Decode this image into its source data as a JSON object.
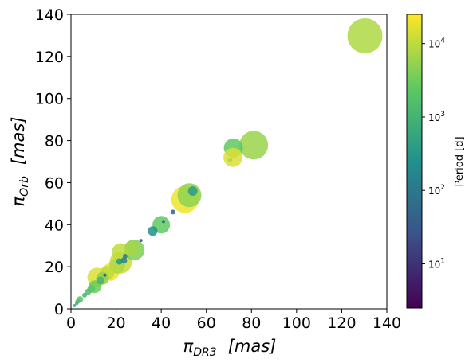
{
  "chart_data": {
    "type": "scatter",
    "title": "",
    "xlabel_main": "π",
    "xlabel_sub": "DR3",
    "xlabel_unit": "[mas]",
    "ylabel_main": "π",
    "ylabel_sub": "Orb",
    "ylabel_unit": "[mas]",
    "xlim": [
      0,
      140
    ],
    "ylim": [
      0,
      140
    ],
    "xticks": [
      "0",
      "20",
      "40",
      "60",
      "80",
      "100",
      "120",
      "140"
    ],
    "yticks": [
      "0",
      "20",
      "40",
      "60",
      "80",
      "100",
      "120",
      "140"
    ],
    "grid": false,
    "colorbar": {
      "label": "Period [d]",
      "scale": "log",
      "range_days": [
        2.5,
        25000
      ],
      "ticks": [
        {
          "base": "10",
          "exp": "1",
          "value": 10
        },
        {
          "base": "10",
          "exp": "2",
          "value": 100
        },
        {
          "base": "10",
          "exp": "3",
          "value": 1000
        },
        {
          "base": "10",
          "exp": "4",
          "value": 10000
        }
      ],
      "colormap": [
        "#440154",
        "#3b528b",
        "#21918c",
        "#5ec962",
        "#fde725"
      ]
    },
    "points": [
      {
        "x": 130.3,
        "y": 129.8,
        "period": 8000,
        "size": 22
      },
      {
        "x": 81.0,
        "y": 77.8,
        "period": 6000,
        "size": 18
      },
      {
        "x": 72.0,
        "y": 76.5,
        "period": 2500,
        "size": 12
      },
      {
        "x": 71.8,
        "y": 72.0,
        "period": 15000,
        "size": 12
      },
      {
        "x": 70.5,
        "y": 70.8,
        "period": 8000,
        "size": 3
      },
      {
        "x": 50.5,
        "y": 52.0,
        "period": 20000,
        "size": 17
      },
      {
        "x": 52.5,
        "y": 54.0,
        "period": 5000,
        "size": 15
      },
      {
        "x": 54.0,
        "y": 56.0,
        "period": 400,
        "size": 6
      },
      {
        "x": 45.2,
        "y": 46.0,
        "period": 40,
        "size": 3
      },
      {
        "x": 40.0,
        "y": 40.0,
        "period": 2500,
        "size": 11
      },
      {
        "x": 41.0,
        "y": 41.5,
        "period": 30,
        "size": 2
      },
      {
        "x": 36.2,
        "y": 37.0,
        "period": 250,
        "size": 6
      },
      {
        "x": 31.0,
        "y": 32.5,
        "period": 20,
        "size": 2
      },
      {
        "x": 28.0,
        "y": 28.0,
        "period": 4000,
        "size": 13
      },
      {
        "x": 27.0,
        "y": 29.0,
        "period": 7000,
        "size": 9
      },
      {
        "x": 22.0,
        "y": 27.0,
        "period": 10000,
        "size": 11
      },
      {
        "x": 22.0,
        "y": 22.0,
        "period": 12000,
        "size": 14
      },
      {
        "x": 23.5,
        "y": 23.0,
        "period": 150,
        "size": 4
      },
      {
        "x": 21.5,
        "y": 22.5,
        "period": 300,
        "size": 4
      },
      {
        "x": 20.5,
        "y": 20.5,
        "period": 8000,
        "size": 10
      },
      {
        "x": 24.0,
        "y": 25.0,
        "period": 100,
        "size": 3
      },
      {
        "x": 17.5,
        "y": 17.5,
        "period": 20000,
        "size": 11
      },
      {
        "x": 16.0,
        "y": 17.0,
        "period": 10000,
        "size": 9
      },
      {
        "x": 11.5,
        "y": 15.0,
        "period": 15000,
        "size": 12
      },
      {
        "x": 15.0,
        "y": 16.0,
        "period": 20,
        "size": 2
      },
      {
        "x": 14.0,
        "y": 14.5,
        "period": 5000,
        "size": 8
      },
      {
        "x": 13.0,
        "y": 13.5,
        "period": 1000,
        "size": 5
      },
      {
        "x": 10.5,
        "y": 10.5,
        "period": 3000,
        "size": 8
      },
      {
        "x": 9.0,
        "y": 9.5,
        "period": 2000,
        "size": 5
      },
      {
        "x": 7.5,
        "y": 8.0,
        "period": 1500,
        "size": 4
      },
      {
        "x": 6.0,
        "y": 6.5,
        "period": 1000,
        "size": 3
      },
      {
        "x": 4.0,
        "y": 4.5,
        "period": 2000,
        "size": 4
      },
      {
        "x": 3.0,
        "y": 3.5,
        "period": 1500,
        "size": 3
      },
      {
        "x": 1.5,
        "y": 1.5,
        "period": 800,
        "size": 2
      },
      {
        "x": 2.5,
        "y": 2.5,
        "period": 600,
        "size": 2
      }
    ]
  }
}
